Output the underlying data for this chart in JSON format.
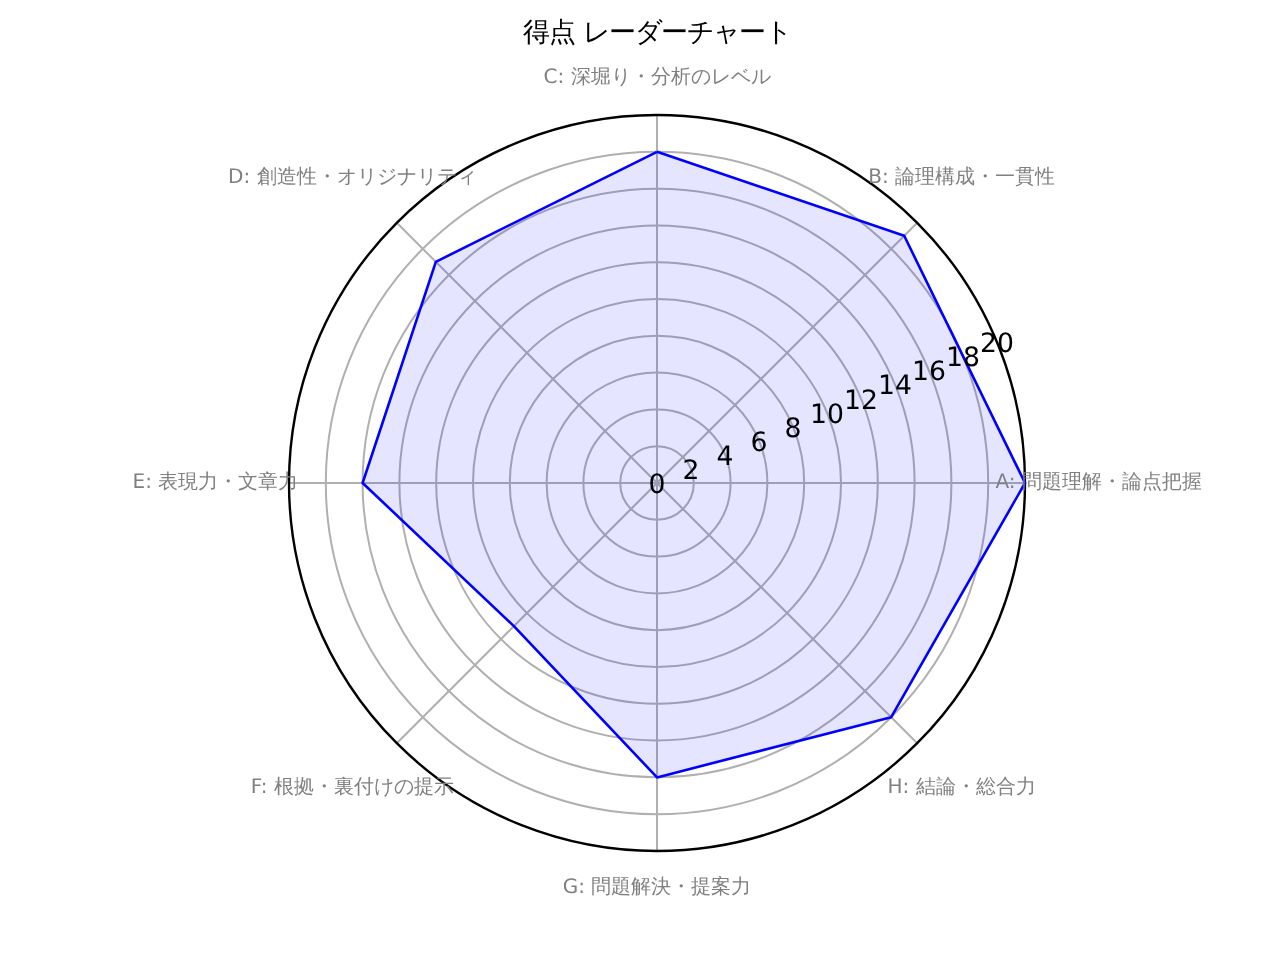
{
  "chart_data": {
    "type": "radar",
    "title": "得点 レーダーチャート",
    "categories": [
      "C: 深堀り・分析のレベル",
      "B: 論理構成・一貫性",
      "A: 問題理解・論点把握",
      "H: 結論・総合力",
      "G: 問題解決・提案力",
      "F: 根拠・裏付けの提示",
      "E: 表現力・文章力",
      "D: 創造性・オリジナリティ"
    ],
    "series": [
      {
        "color": "#0000ff",
        "values": [
          18,
          19,
          20,
          18,
          16,
          11,
          16,
          17
        ]
      }
    ],
    "ylim": [
      0,
      20
    ],
    "yticks": [
      0,
      2,
      4,
      6,
      8,
      10,
      12,
      14,
      16,
      18,
      20
    ],
    "grid": true
  }
}
